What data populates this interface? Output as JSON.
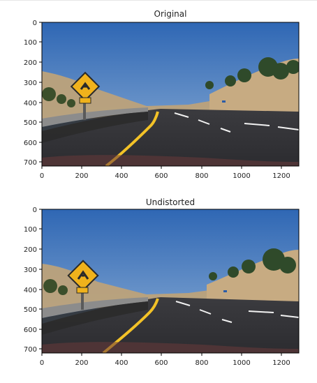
{
  "figures": [
    {
      "title": "Original",
      "x_ticks": [
        "0",
        "200",
        "400",
        "600",
        "800",
        "1000",
        "1200"
      ],
      "y_ticks": [
        "0",
        "100",
        "200",
        "300",
        "400",
        "500",
        "600",
        "700"
      ],
      "scene": "original"
    },
    {
      "title": "Undistorted",
      "x_ticks": [
        "0",
        "200",
        "400",
        "600",
        "800",
        "1000",
        "1200"
      ],
      "y_ticks": [
        "0",
        "100",
        "200",
        "300",
        "400",
        "500",
        "600",
        "700"
      ],
      "scene": "undistorted"
    }
  ],
  "colors": {
    "sky_top": "#2f67b4",
    "sky_bottom": "#8fb0d6",
    "asphalt": "#3b3b3f",
    "lane_yellow": "#f3c227",
    "lane_white": "#f2f2f2",
    "sign_yellow": "#f0b21c",
    "hills": "#bda27a",
    "trees": "#2f4a2a"
  }
}
